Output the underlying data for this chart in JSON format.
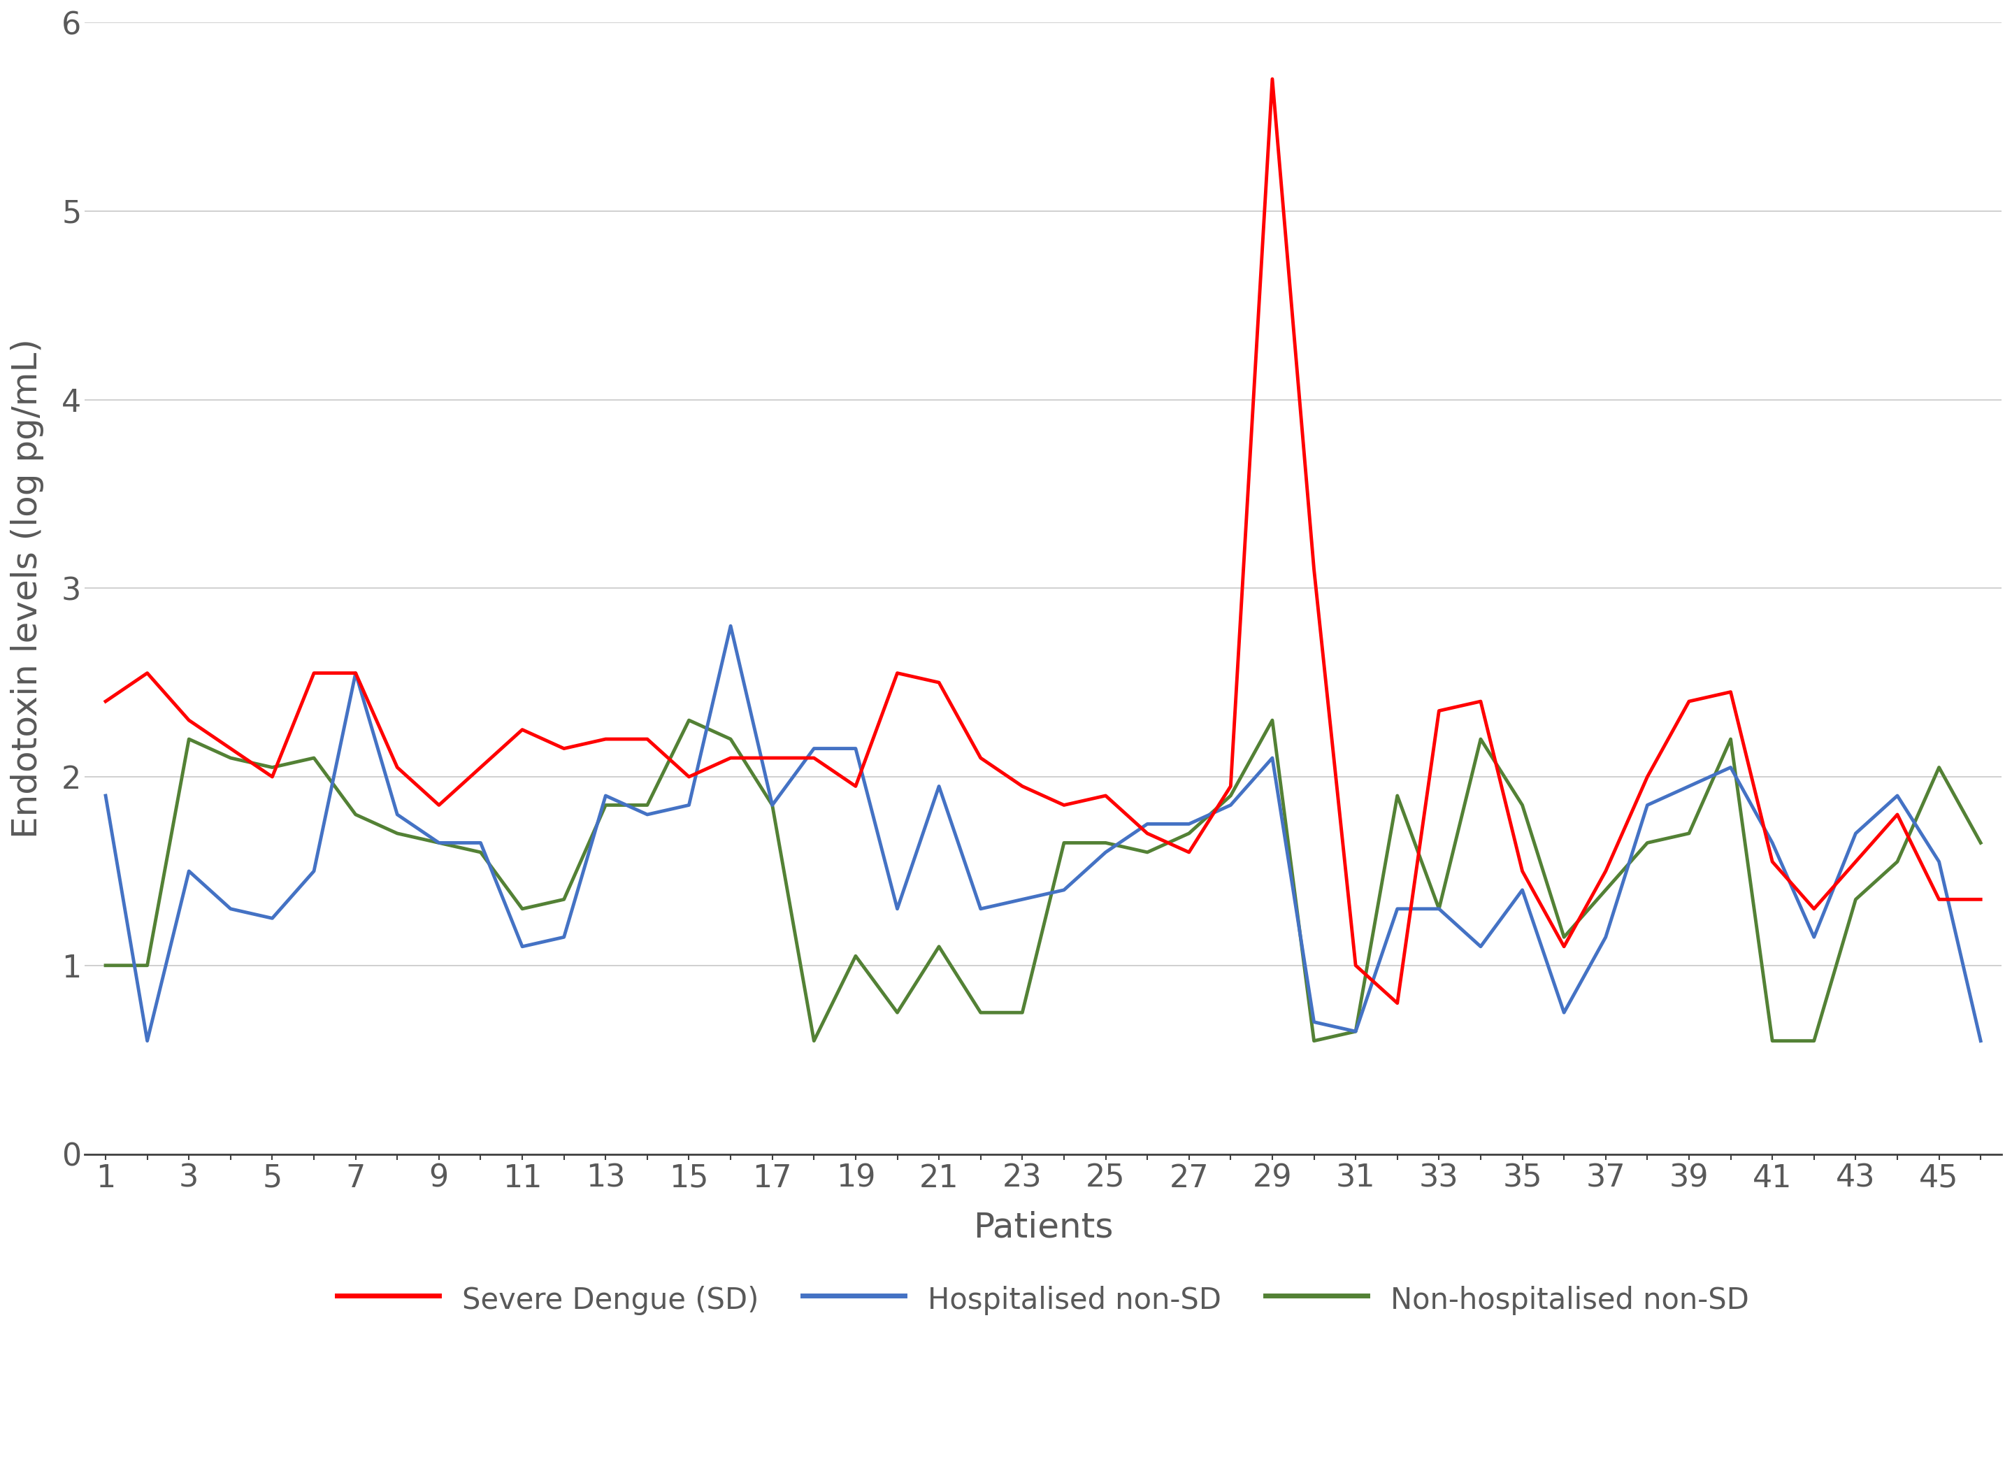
{
  "patients": [
    1,
    2,
    3,
    4,
    5,
    6,
    7,
    8,
    9,
    10,
    11,
    12,
    13,
    14,
    15,
    16,
    17,
    18,
    19,
    20,
    21,
    22,
    23,
    24,
    25,
    26,
    27,
    28,
    29,
    30,
    31,
    32,
    33,
    34,
    35,
    36,
    37,
    38,
    39,
    40,
    41,
    42,
    43,
    44,
    45,
    46
  ],
  "severe_dengue": [
    2.4,
    2.55,
    2.3,
    2.15,
    2.0,
    2.55,
    2.55,
    2.05,
    1.85,
    2.05,
    2.25,
    2.15,
    2.2,
    2.2,
    2.0,
    2.1,
    2.1,
    2.1,
    1.95,
    2.55,
    2.5,
    2.1,
    1.95,
    1.85,
    1.9,
    1.7,
    1.6,
    1.95,
    5.7,
    3.1,
    1.0,
    0.8,
    2.35,
    2.4,
    1.5,
    1.1,
    1.5,
    2.0,
    2.4,
    2.45,
    1.55,
    1.3,
    1.55,
    1.8,
    1.35,
    1.35
  ],
  "hosp_non_sd": [
    1.9,
    0.6,
    1.5,
    1.3,
    1.25,
    1.5,
    2.55,
    1.8,
    1.65,
    1.65,
    1.1,
    1.15,
    1.9,
    1.8,
    1.85,
    2.8,
    1.85,
    2.15,
    2.15,
    1.3,
    1.95,
    1.3,
    1.35,
    1.4,
    1.6,
    1.75,
    1.75,
    1.85,
    2.1,
    0.7,
    0.65,
    1.3,
    1.3,
    1.1,
    1.4,
    0.75,
    1.15,
    1.85,
    1.95,
    2.05,
    1.65,
    1.15,
    1.7,
    1.9,
    1.55,
    0.6
  ],
  "non_hosp_non_sd": [
    1.0,
    1.0,
    2.2,
    2.1,
    2.05,
    2.1,
    1.8,
    1.7,
    1.65,
    1.6,
    1.3,
    1.35,
    1.85,
    1.85,
    2.3,
    2.2,
    1.85,
    0.6,
    1.05,
    0.75,
    1.1,
    0.75,
    0.75,
    1.65,
    1.65,
    1.6,
    1.7,
    1.9,
    2.3,
    0.6,
    0.65,
    1.9,
    1.3,
    2.2,
    1.85,
    1.15,
    1.4,
    1.65,
    1.7,
    2.2,
    0.6,
    0.6,
    1.35,
    1.55,
    2.05,
    1.65
  ],
  "colors": {
    "severe_dengue": "#FF0000",
    "hosp_non_sd": "#4472C4",
    "non_hosp_non_sd": "#538135"
  },
  "legend_labels": [
    "Severe Dengue (SD)",
    "Hospitalised non-SD",
    "Non-hospitalised non-SD"
  ],
  "xlabel": "Patients",
  "ylabel": "Endotoxin levels (log pg/mL)",
  "ylim": [
    0,
    6
  ],
  "yticks": [
    0,
    1,
    2,
    3,
    4,
    5,
    6
  ],
  "xtick_labels": [
    "1",
    "3",
    "5",
    "7",
    "9",
    "11",
    "13",
    "15",
    "17",
    "19",
    "21",
    "23",
    "25",
    "27",
    "29",
    "31",
    "33",
    "35",
    "37",
    "39",
    "41",
    "43",
    "45"
  ],
  "xtick_positions": [
    1,
    3,
    5,
    7,
    9,
    11,
    13,
    15,
    17,
    19,
    21,
    23,
    25,
    27,
    29,
    31,
    33,
    35,
    37,
    39,
    41,
    43,
    45
  ],
  "linewidth": 3.5,
  "background_color": "#FFFFFF",
  "grid_color": "#C8C8C8",
  "axis_color": "#404040",
  "tick_color": "#595959",
  "axis_label_fontsize": 36,
  "tick_fontsize": 32,
  "legend_fontsize": 30
}
